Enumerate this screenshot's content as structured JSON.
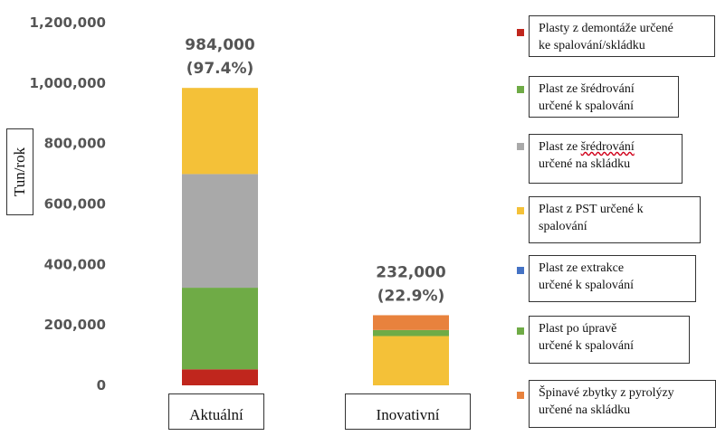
{
  "chart_data": {
    "type": "bar",
    "stacked": true,
    "ylabel": "Tun/rok",
    "ylim": [
      0,
      1200000
    ],
    "yticks": [
      0,
      200000,
      400000,
      600000,
      800000,
      1000000,
      1200000
    ],
    "ytick_labels": [
      "0",
      "200,000",
      "400,000",
      "600,000",
      "800,000",
      "1,000,000",
      "1,200,000"
    ],
    "grid": false,
    "legend_position": "right",
    "categories": [
      "Aktuální",
      "Inovativní"
    ],
    "totals": [
      "984,000",
      "232,000"
    ],
    "total_percents": [
      "(97.4%)",
      "(22.9%)"
    ],
    "series": [
      {
        "name": "Plasty z demontáže určené ke spalování/skládku",
        "color": "#c0261d",
        "values": [
          53000,
          0
        ]
      },
      {
        "name": "Plast ze šrédrování určené k spalování",
        "color": "#6fab46",
        "values": [
          270000,
          0
        ]
      },
      {
        "name": "Plast ze šrédrování určené na skládku",
        "color": "#a9a9a9",
        "values": [
          376000,
          0
        ]
      },
      {
        "name": "Plast z PST určené k spalování",
        "color": "#f4c138",
        "values": [
          285000,
          163000
        ]
      },
      {
        "name": "Plast ze extrakce určené k spalování",
        "color": "#4472c4",
        "values": [
          0,
          0
        ]
      },
      {
        "name": "Plast po úpravě určené k spalování",
        "color": "#6fab46",
        "values": [
          0,
          20000
        ]
      },
      {
        "name": "Špinavé zbytky z pyrolýzy určené na skládku",
        "color": "#e8823d",
        "values": [
          0,
          49000
        ]
      }
    ]
  },
  "legend": [
    {
      "line1": "Plasty z demontáže určené",
      "line2": "ke spalování/skládku",
      "color": "#c0261d"
    },
    {
      "line1": "Plast ze šrédrování",
      "line2": "určené k spalování",
      "color": "#6fab46"
    },
    {
      "line1": "Plast ze šrédrování",
      "line2": "určené na skládku",
      "color": "#a9a9a9"
    },
    {
      "line1": "Plast z PST určené k",
      "line2": "spalování",
      "color": "#f4c138"
    },
    {
      "line1": "Plast ze extrakce",
      "line2": "určené k spalování",
      "color": "#4472c4"
    },
    {
      "line1": "Plast po úpravě",
      "line2": "určené k spalování",
      "color": "#6fab46"
    },
    {
      "line1": "Špinavé zbytky z pyrolýzy",
      "line2": "určené na skládku",
      "color": "#e8823d"
    }
  ]
}
